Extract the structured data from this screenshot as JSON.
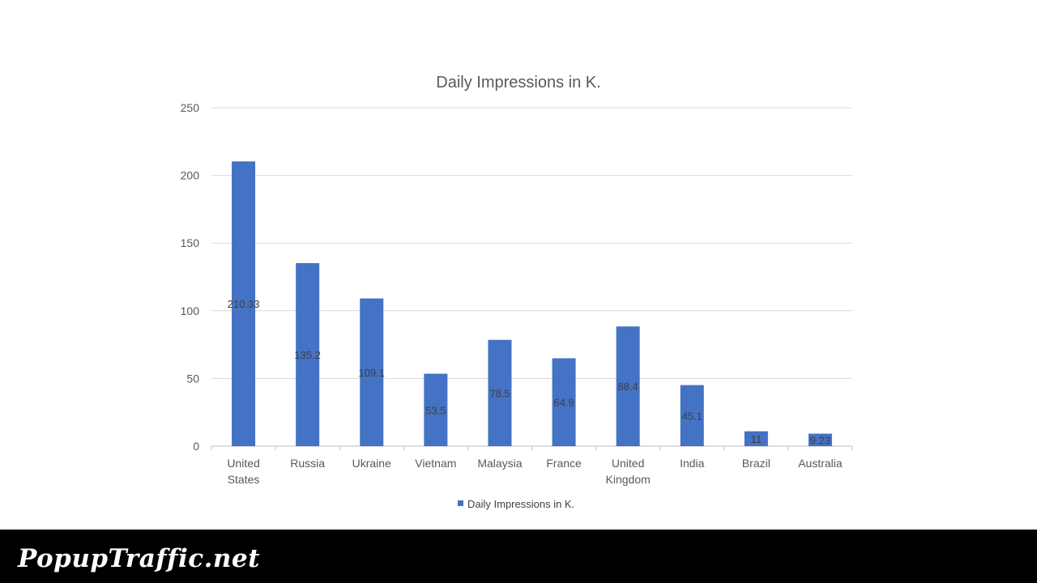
{
  "chart_data": {
    "type": "bar",
    "title": "Daily Impressions in K.",
    "categories": [
      [
        "United",
        "States"
      ],
      [
        "Russia"
      ],
      [
        "Ukraine"
      ],
      [
        "Vietnam"
      ],
      [
        "Malaysia"
      ],
      [
        "France"
      ],
      [
        "United",
        "Kingdom"
      ],
      [
        "India"
      ],
      [
        "Brazil"
      ],
      [
        "Australia"
      ]
    ],
    "series": [
      {
        "name": "Daily Impressions in K.",
        "values": [
          210.33,
          135.2,
          109.1,
          53.5,
          78.5,
          64.9,
          88.4,
          45.1,
          11,
          9.23
        ],
        "labels": [
          "210.33",
          "135.2",
          "109.1",
          "53.5",
          "78.5",
          "64.9",
          "88.4",
          "45.1",
          "11",
          "9.23"
        ]
      }
    ],
    "ylim": [
      0,
      250
    ],
    "yticks": [
      "0",
      "50",
      "100",
      "150",
      "200",
      "250"
    ],
    "grid": true,
    "legend_position": "bottom",
    "bar_color": "#4472C4"
  },
  "footer": {
    "watermark": "PopupTraffic.net",
    "background": "#000000"
  }
}
